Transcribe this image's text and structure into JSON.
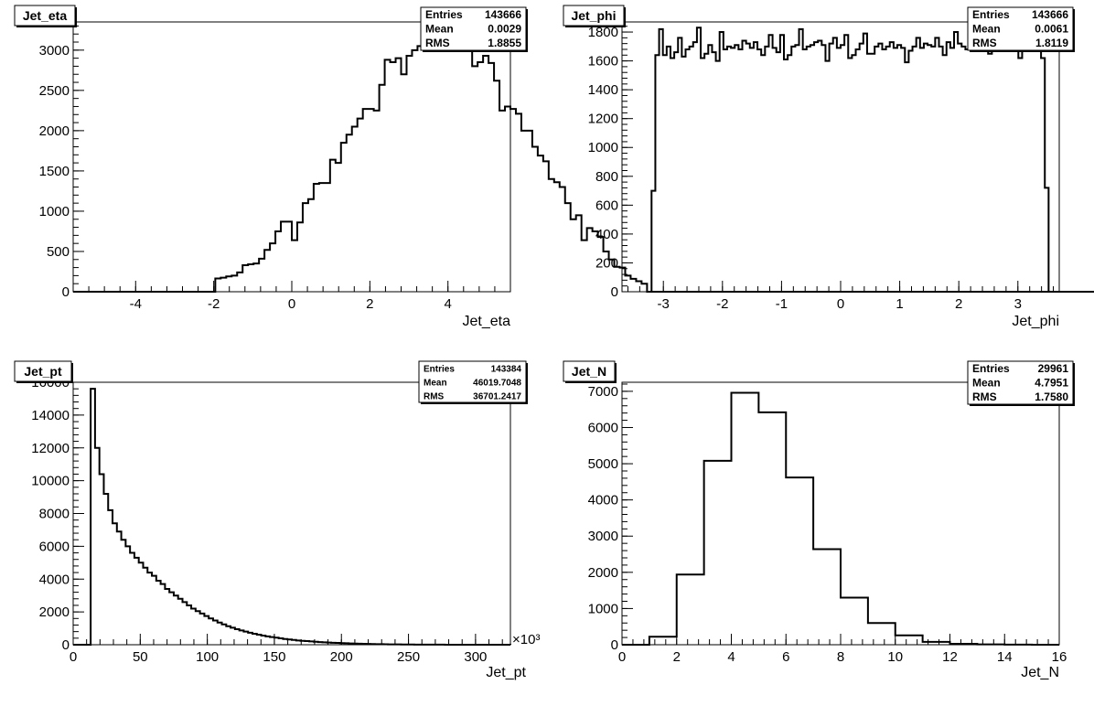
{
  "chart_data": [
    {
      "type": "histogram",
      "title": "Jet_eta",
      "xlabel": "Jet_eta",
      "ylabel": "",
      "xlim": [
        -5.6,
        5.6
      ],
      "ylim": [
        0,
        3350
      ],
      "xticks": [
        -4,
        -2,
        0,
        2,
        4
      ],
      "yticks": [
        0,
        500,
        1000,
        1500,
        2000,
        2500,
        3000
      ],
      "x_exponent": "",
      "stats": {
        "labels": [
          "Entries",
          "Mean",
          "RMS"
        ],
        "values": [
          "143666",
          "0.0029",
          "1.8855"
        ]
      },
      "bin_start": -5.6,
      "bin_width": 0.14,
      "values": [
        0,
        0,
        0,
        0,
        0,
        0,
        0,
        0,
        0,
        0,
        0,
        0,
        0,
        0,
        0,
        0,
        0,
        0,
        0,
        0,
        0,
        0,
        0,
        0,
        0,
        0,
        165,
        175,
        190,
        200,
        240,
        330,
        340,
        350,
        410,
        520,
        600,
        750,
        870,
        870,
        640,
        860,
        1100,
        1150,
        1340,
        1350,
        1350,
        1640,
        1600,
        1850,
        1950,
        2050,
        2150,
        2270,
        2270,
        2250,
        2570,
        2880,
        2850,
        2900,
        2700,
        2930,
        3000,
        3050,
        3230,
        3120,
        3060,
        3050,
        3050,
        3200,
        3120,
        3070,
        3070,
        2800,
        2850,
        2930,
        2840,
        2620,
        2250,
        2300,
        2270,
        2210,
        2000,
        2000,
        1800,
        1690,
        1620,
        1400,
        1360,
        1300,
        1100,
        900,
        950,
        640,
        790,
        750,
        680,
        500,
        400,
        310,
        300,
        200,
        160,
        130,
        100,
        0,
        0,
        0,
        0,
        0,
        0,
        0,
        0,
        0,
        0,
        0,
        0,
        0,
        0,
        0,
        0,
        0,
        0,
        0,
        0,
        0,
        0,
        0,
        0,
        0,
        0,
        0,
        0,
        0,
        0,
        0,
        0,
        0,
        0,
        0,
        0,
        0,
        0,
        0,
        0,
        0,
        0,
        0,
        0,
        0,
        0,
        0,
        0,
        0,
        0,
        0,
        0,
        0,
        0,
        0,
        0,
        0,
        0,
        0,
        0,
        0,
        0,
        0,
        0,
        0,
        0,
        0,
        0,
        0,
        0,
        0,
        0,
        0,
        0,
        0,
        0,
        0,
        0,
        0,
        0,
        0,
        0,
        0,
        0,
        0,
        0,
        0,
        0
      ]
    },
    {
      "type": "histogram",
      "title": "Jet_phi",
      "xlabel": "Jet_phi",
      "ylabel": "",
      "xlim": [
        -3.7,
        3.7
      ],
      "ylim": [
        0,
        1870
      ],
      "xticks": [
        -3,
        -2,
        -1,
        0,
        1,
        2,
        3
      ],
      "yticks": [
        0,
        200,
        400,
        600,
        800,
        1000,
        1200,
        1400,
        1600,
        1800
      ],
      "x_exponent": "",
      "stats": {
        "labels": [
          "Entries",
          "Mean",
          "RMS"
        ],
        "values": [
          "143666",
          "0.0061",
          "1.8119"
        ]
      },
      "bin_start": -3.2,
      "bin_width": 0.064,
      "values": [
        700,
        1640,
        1820,
        1640,
        1700,
        1620,
        1660,
        1760,
        1630,
        1680,
        1700,
        1730,
        1830,
        1620,
        1650,
        1710,
        1660,
        1600,
        1800,
        1680,
        1700,
        1690,
        1710,
        1680,
        1740,
        1720,
        1690,
        1730,
        1680,
        1640,
        1700,
        1780,
        1690,
        1660,
        1780,
        1610,
        1640,
        1700,
        1710,
        1820,
        1680,
        1700,
        1710,
        1730,
        1740,
        1710,
        1600,
        1720,
        1760,
        1690,
        1710,
        1780,
        1620,
        1640,
        1680,
        1720,
        1790,
        1650,
        1650,
        1700,
        1720,
        1680,
        1700,
        1730,
        1690,
        1710,
        1690,
        1590,
        1670,
        1700,
        1760,
        1690,
        1720,
        1710,
        1700,
        1760,
        1700,
        1640,
        1730,
        1690,
        1800,
        1720,
        1700,
        1680,
        1740,
        1710,
        1700,
        1760,
        1690,
        1650,
        1720,
        1700,
        1730,
        1680,
        1760,
        1720,
        1800,
        1620,
        1720,
        1710,
        1670,
        1760,
        1700,
        1620,
        720
      ]
    },
    {
      "type": "histogram",
      "title": "Jet_pt",
      "xlabel": "Jet_pt",
      "ylabel": "",
      "xlim": [
        0,
        326
      ],
      "ylim": [
        0,
        16000
      ],
      "xticks": [
        0,
        50,
        100,
        150,
        200,
        250,
        300
      ],
      "yticks": [
        0,
        2000,
        4000,
        6000,
        8000,
        10000,
        12000,
        14000,
        16000
      ],
      "x_exponent": "×10³",
      "stats": {
        "labels": [
          "Entries",
          "Mean",
          "RMS"
        ],
        "values": [
          "143384",
          "46019.7048",
          "36701.2417"
        ]
      },
      "bin_start": 0,
      "bin_width": 3.26,
      "values": [
        0,
        0,
        0,
        0,
        15600,
        12000,
        10400,
        9200,
        8200,
        7400,
        6900,
        6400,
        6000,
        5600,
        5300,
        5000,
        4700,
        4400,
        4200,
        3900,
        3700,
        3400,
        3200,
        3000,
        2800,
        2600,
        2400,
        2200,
        2050,
        1900,
        1750,
        1600,
        1480,
        1350,
        1240,
        1130,
        1040,
        950,
        870,
        800,
        730,
        670,
        610,
        560,
        510,
        470,
        430,
        390,
        350,
        320,
        290,
        260,
        240,
        220,
        200,
        180,
        160,
        145,
        130,
        120,
        110,
        100,
        90,
        80,
        70,
        62,
        55,
        48,
        42,
        37,
        32,
        28,
        24,
        21,
        18,
        15,
        13,
        11,
        10,
        9,
        8,
        7,
        6,
        5,
        4,
        3,
        3,
        2,
        2,
        2,
        1,
        1,
        1,
        1,
        1,
        1,
        1,
        1,
        1,
        1
      ]
    },
    {
      "type": "histogram",
      "title": "Jet_N",
      "xlabel": "Jet_N",
      "ylabel": "",
      "xlim": [
        0,
        16
      ],
      "ylim": [
        0,
        7250
      ],
      "xticks": [
        0,
        2,
        4,
        6,
        8,
        10,
        12,
        14,
        16
      ],
      "yticks": [
        0,
        1000,
        2000,
        3000,
        4000,
        5000,
        6000,
        7000
      ],
      "x_exponent": "",
      "stats": {
        "labels": [
          "Entries",
          "Mean",
          "RMS"
        ],
        "values": [
          "29961",
          "4.7951",
          "1.7580"
        ]
      },
      "bin_start": 0,
      "bin_width": 1,
      "values": [
        0,
        220,
        1940,
        5080,
        6960,
        6420,
        4620,
        2640,
        1300,
        600,
        260,
        80,
        25,
        8,
        2,
        0
      ]
    }
  ]
}
